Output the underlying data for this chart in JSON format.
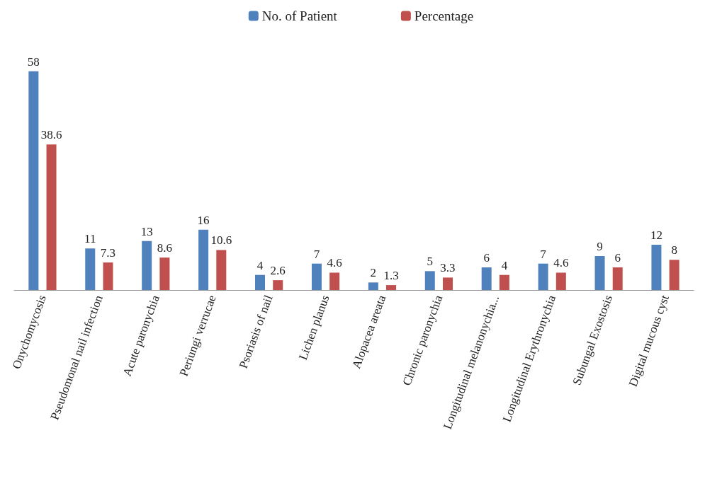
{
  "chart_data": {
    "type": "bar",
    "categories": [
      "Onychomycosis",
      "Pseudomonal nail infection",
      "Acute paronychia",
      "Periungi verrucae",
      "Psoriasis of nail",
      "Lichen planus",
      "Alopacea areata",
      "Chronic paronychia",
      "Longitudinal melanonychia...",
      "Longitudinal Erythronychia",
      "Subungal Exostosis",
      "Digital mucous cyst"
    ],
    "series": [
      {
        "name": "No. of Patient",
        "color": "#4f81bd",
        "values": [
          58,
          11,
          13,
          16,
          4,
          7,
          2,
          5,
          6,
          7,
          9,
          12
        ]
      },
      {
        "name": "Percentage",
        "color": "#c0504d",
        "values": [
          38.6,
          7.3,
          8.6,
          10.6,
          2.6,
          4.6,
          1.3,
          3.3,
          4,
          4.6,
          6,
          8
        ]
      }
    ],
    "data_labels": true,
    "legend": "top"
  }
}
